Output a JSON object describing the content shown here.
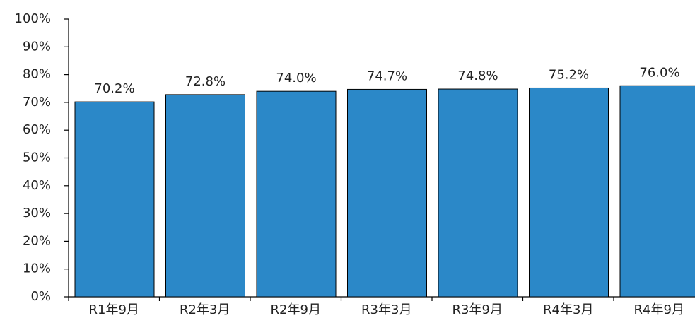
{
  "chart_data": {
    "type": "bar",
    "categories": [
      "R1年9月",
      "R2年3月",
      "R2年9月",
      "R3年3月",
      "R3年9月",
      "R4年3月",
      "R4年9月"
    ],
    "values": [
      70.2,
      72.8,
      74.0,
      74.7,
      74.8,
      75.2,
      76.0
    ],
    "value_labels": [
      "70.2%",
      "72.8%",
      "74.0%",
      "74.7%",
      "74.8%",
      "75.2%",
      "76.0%"
    ],
    "color": "#2b88c8",
    "ylim": [
      0,
      100
    ],
    "yticks": [
      {
        "value": 0,
        "label": "0%"
      },
      {
        "value": 10,
        "label": "10%"
      },
      {
        "value": 20,
        "label": "20%"
      },
      {
        "value": 30,
        "label": "30%"
      },
      {
        "value": 40,
        "label": "40%"
      },
      {
        "value": 50,
        "label": "50%"
      },
      {
        "value": 60,
        "label": "60%"
      },
      {
        "value": 70,
        "label": "70%"
      },
      {
        "value": 80,
        "label": "80%"
      },
      {
        "value": 90,
        "label": "90%"
      },
      {
        "value": 100,
        "label": "100%"
      }
    ],
    "grid": false
  }
}
